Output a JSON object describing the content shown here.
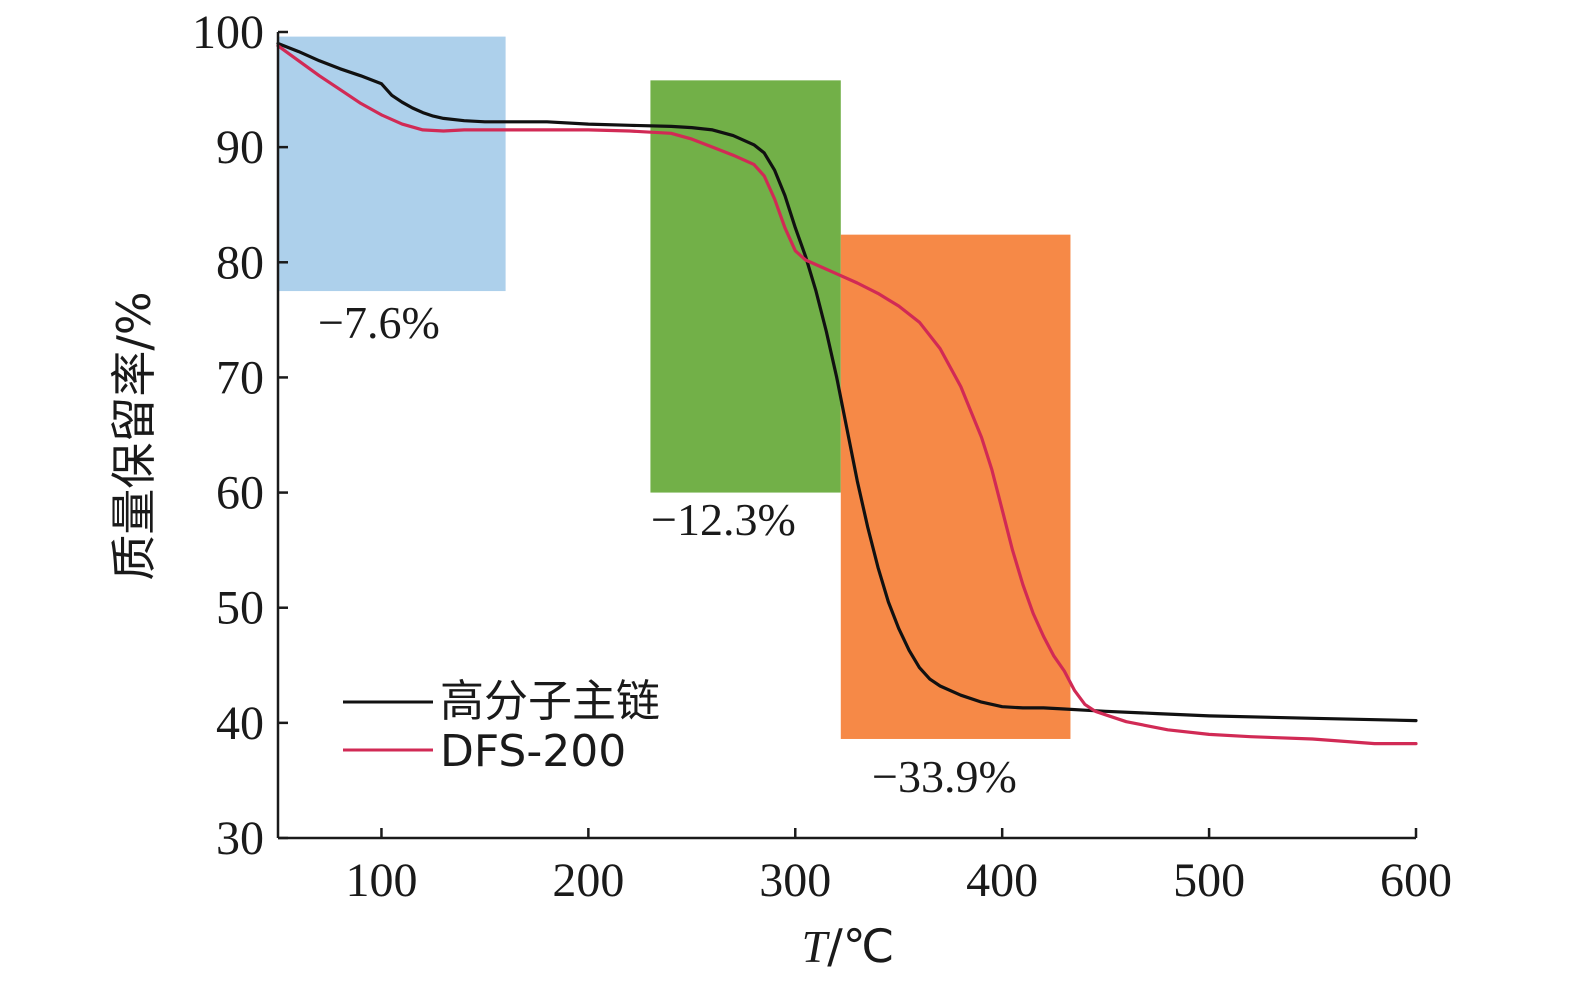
{
  "chart_data": {
    "type": "line",
    "ylabel": "质量保留率/%",
    "xlabel_italic": "T",
    "xlabel_rest": "/℃",
    "xlim": [
      50,
      600
    ],
    "ylim": [
      30,
      100
    ],
    "xticks": [
      100,
      200,
      300,
      400,
      500,
      600
    ],
    "yticks": [
      30,
      40,
      50,
      60,
      70,
      80,
      90,
      100
    ],
    "grid": false,
    "legend_position": "bottom-left",
    "series": [
      {
        "name": "高分子主链",
        "color": "#111111",
        "x": [
          50,
          60,
          70,
          80,
          90,
          100,
          105,
          110,
          115,
          120,
          125,
          130,
          140,
          150,
          160,
          180,
          200,
          220,
          240,
          250,
          260,
          270,
          280,
          285,
          290,
          295,
          300,
          305,
          310,
          315,
          320,
          325,
          330,
          335,
          340,
          345,
          350,
          355,
          360,
          365,
          370,
          380,
          390,
          400,
          410,
          420,
          430,
          440,
          450,
          475,
          500,
          550,
          600
        ],
        "y": [
          99,
          98.3,
          97.5,
          96.8,
          96.2,
          95.5,
          94.5,
          93.9,
          93.4,
          93.0,
          92.7,
          92.5,
          92.3,
          92.2,
          92.2,
          92.2,
          92.0,
          91.9,
          91.8,
          91.7,
          91.5,
          91.0,
          90.2,
          89.5,
          88.0,
          85.8,
          83.0,
          80.5,
          77.5,
          74.0,
          70.0,
          65.5,
          61.0,
          57.0,
          53.5,
          50.5,
          48.2,
          46.3,
          44.8,
          43.8,
          43.2,
          42.4,
          41.8,
          41.4,
          41.3,
          41.3,
          41.2,
          41.1,
          41.0,
          40.8,
          40.6,
          40.4,
          40.2
        ]
      },
      {
        "name": "DFS-200",
        "color": "#d12a55",
        "x": [
          50,
          60,
          70,
          80,
          90,
          100,
          110,
          120,
          130,
          140,
          160,
          180,
          200,
          220,
          240,
          250,
          260,
          270,
          280,
          285,
          290,
          295,
          300,
          305,
          310,
          320,
          330,
          340,
          350,
          360,
          370,
          380,
          390,
          395,
          400,
          405,
          410,
          415,
          420,
          425,
          430,
          435,
          440,
          445,
          450,
          460,
          480,
          500,
          520,
          550,
          580,
          600
        ],
        "y": [
          98.8,
          97.5,
          96.2,
          95.0,
          93.8,
          92.8,
          92.0,
          91.5,
          91.4,
          91.5,
          91.5,
          91.5,
          91.5,
          91.4,
          91.2,
          90.7,
          90.0,
          89.3,
          88.5,
          87.5,
          85.5,
          83.0,
          81.0,
          80.2,
          79.8,
          79.0,
          78.2,
          77.3,
          76.2,
          74.8,
          72.5,
          69.2,
          64.8,
          62.0,
          58.5,
          55.0,
          52.0,
          49.5,
          47.5,
          45.8,
          44.5,
          42.8,
          41.6,
          41.0,
          40.7,
          40.1,
          39.4,
          39.0,
          38.8,
          38.6,
          38.2,
          38.2
        ]
      }
    ],
    "regions": [
      {
        "x0": 50,
        "x1": 160,
        "y0": 77.5,
        "y1": 99.6,
        "color": "#a9cdea",
        "label": "−7.6%"
      },
      {
        "x0": 230,
        "x1": 322,
        "y0": 60.0,
        "y1": 95.8,
        "color": "#6aac3e",
        "label": "−12.3%"
      },
      {
        "x0": 322,
        "x1": 433,
        "y0": 38.6,
        "y1": 82.4,
        "color": "#f5833d",
        "label": "−33.9%"
      }
    ]
  }
}
